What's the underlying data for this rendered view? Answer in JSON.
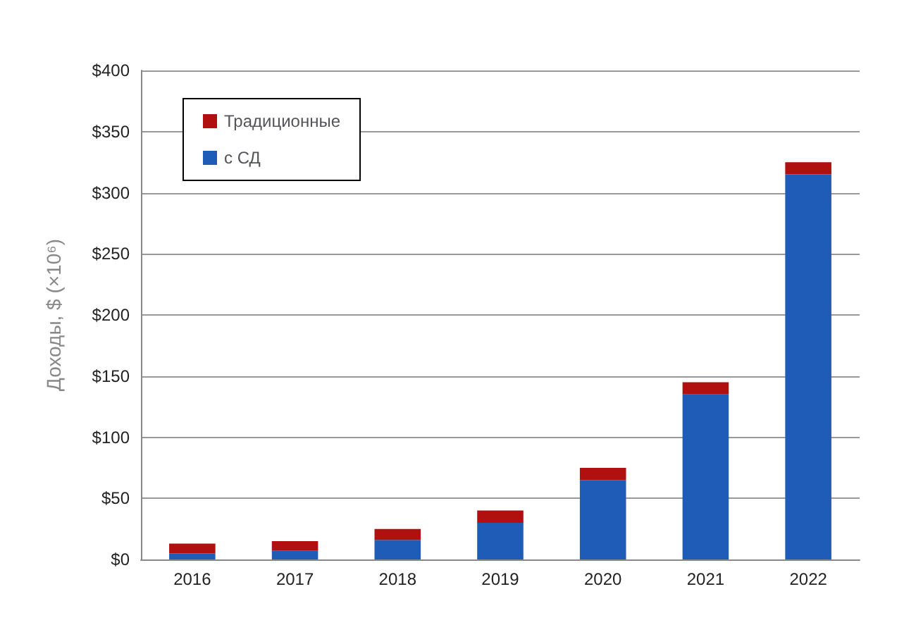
{
  "chart_data": {
    "type": "bar",
    "ylabel": "Доходы, $ (×10⁶)",
    "categories": [
      "2016",
      "2017",
      "2018",
      "2019",
      "2020",
      "2021",
      "2022"
    ],
    "stacked": true,
    "series": [
      {
        "name": "с СД",
        "color": "#1f5cb8",
        "values": [
          5,
          7,
          16,
          30,
          65,
          135,
          315
        ]
      },
      {
        "name": "Традиционные",
        "color": "#b01010",
        "values": [
          8,
          8,
          9,
          10,
          10,
          10,
          10
        ]
      }
    ],
    "ylim": [
      0,
      400
    ],
    "yticks": [
      {
        "value": 0,
        "label": "$0"
      },
      {
        "value": 50,
        "label": "$50"
      },
      {
        "value": 100,
        "label": "$100"
      },
      {
        "value": 150,
        "label": "$150"
      },
      {
        "value": 200,
        "label": "$200"
      },
      {
        "value": 250,
        "label": "$250"
      },
      {
        "value": 300,
        "label": "$300"
      },
      {
        "value": 350,
        "label": "$350"
      },
      {
        "value": 400,
        "label": "$400"
      }
    ],
    "grid": "y",
    "legend": "top left"
  }
}
